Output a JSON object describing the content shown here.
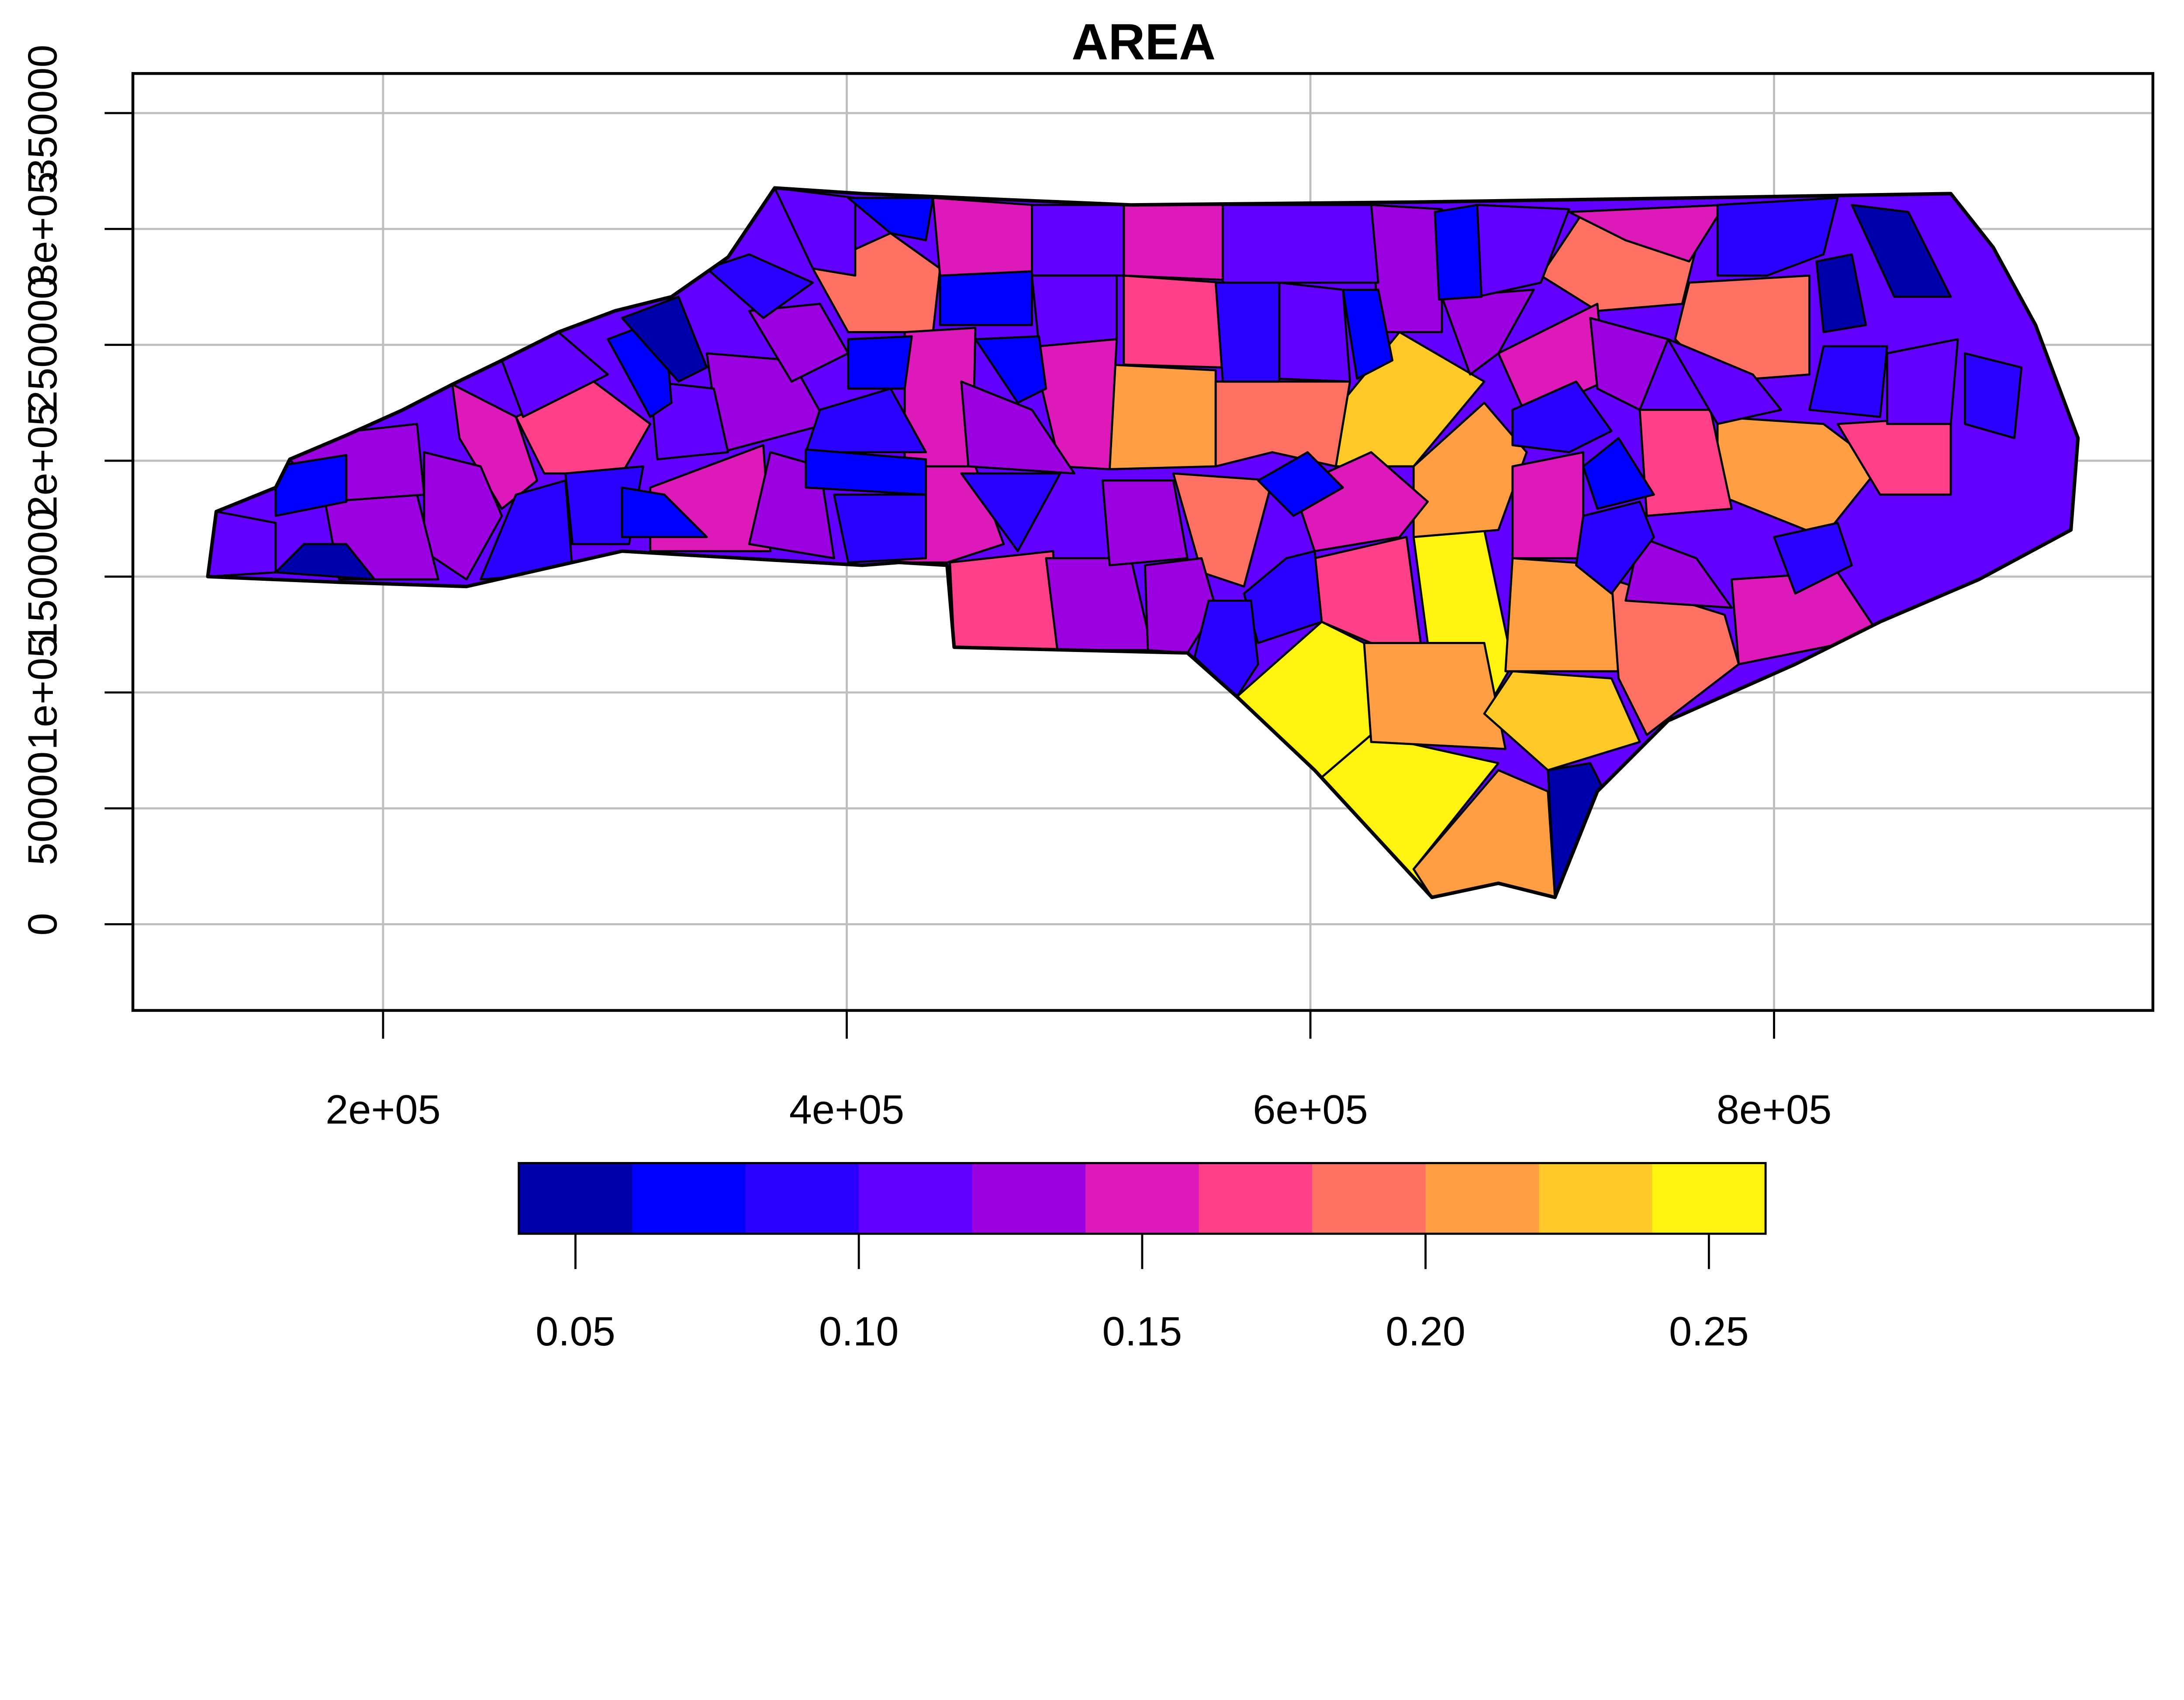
{
  "title": "AREA",
  "map": {
    "x_axis": {
      "ticks": [
        200000,
        400000,
        600000,
        800000
      ],
      "labels": [
        "2e+05",
        "4e+05",
        "6e+05",
        "8e+05"
      ]
    },
    "y_axis": {
      "ticks": [
        0,
        50000,
        100000,
        150000,
        200000,
        250000,
        300000,
        350000
      ],
      "labels": [
        "0",
        "50000",
        "1e+05",
        "150000",
        "2e+05",
        "250000",
        "3e+05",
        "350000"
      ]
    },
    "grid": true,
    "grid_color": "#bebebe",
    "border_color": "#000000"
  },
  "legend": {
    "placement": "bottom",
    "breaks": [
      0.04,
      0.06,
      0.08,
      0.1,
      0.12,
      0.14,
      0.16,
      0.18,
      0.2,
      0.22,
      0.24,
      0.26
    ],
    "colors": [
      "#0000AA",
      "#0000FF",
      "#2A00FF",
      "#6100FF",
      "#9B00E0",
      "#DD19B9",
      "#FF4088",
      "#FF7162",
      "#FF9E42",
      "#FFC928",
      "#FFF310"
    ],
    "ticks": [
      0.05,
      0.1,
      0.15,
      0.2,
      0.25
    ],
    "tick_labels": [
      "0.05",
      "0.10",
      "0.15",
      "0.20",
      "0.25"
    ]
  }
}
